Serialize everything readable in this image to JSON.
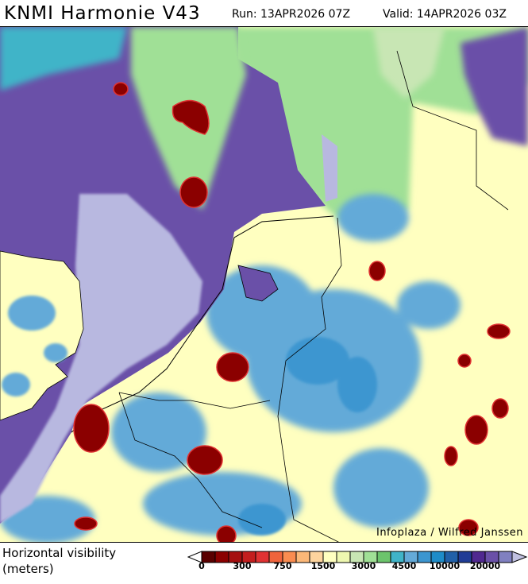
{
  "header": {
    "title": "KNMI Harmonie V43",
    "run": "Run: 13APR2026 07Z",
    "valid": "Valid: 14APR2026 03Z"
  },
  "map": {
    "credit": "Infoplaza / Wilfred Janssen",
    "variable": "Horizontal visibility"
  },
  "legend": {
    "title_line1": "Horizontal visibility",
    "title_line2": "(meters)",
    "colors": [
      "#5a0000",
      "#8b0000",
      "#a50f0f",
      "#c41e1e",
      "#e03232",
      "#f0643c",
      "#fa8c50",
      "#fcb878",
      "#fdd49e",
      "#ffffc0",
      "#eef7b0",
      "#c8e6b4",
      "#a0e096",
      "#6cc46c",
      "#40b4c8",
      "#64aad8",
      "#3c96d0",
      "#1e8cc8",
      "#2060a8",
      "#203c96",
      "#502890",
      "#6a50a8",
      "#8080c0"
    ],
    "under_color": "#ffffff",
    "over_color": "#c0c0e0",
    "ticks": [
      "0",
      "300",
      "750",
      "1500",
      "3000",
      "4500",
      "10000",
      "20000"
    ]
  }
}
